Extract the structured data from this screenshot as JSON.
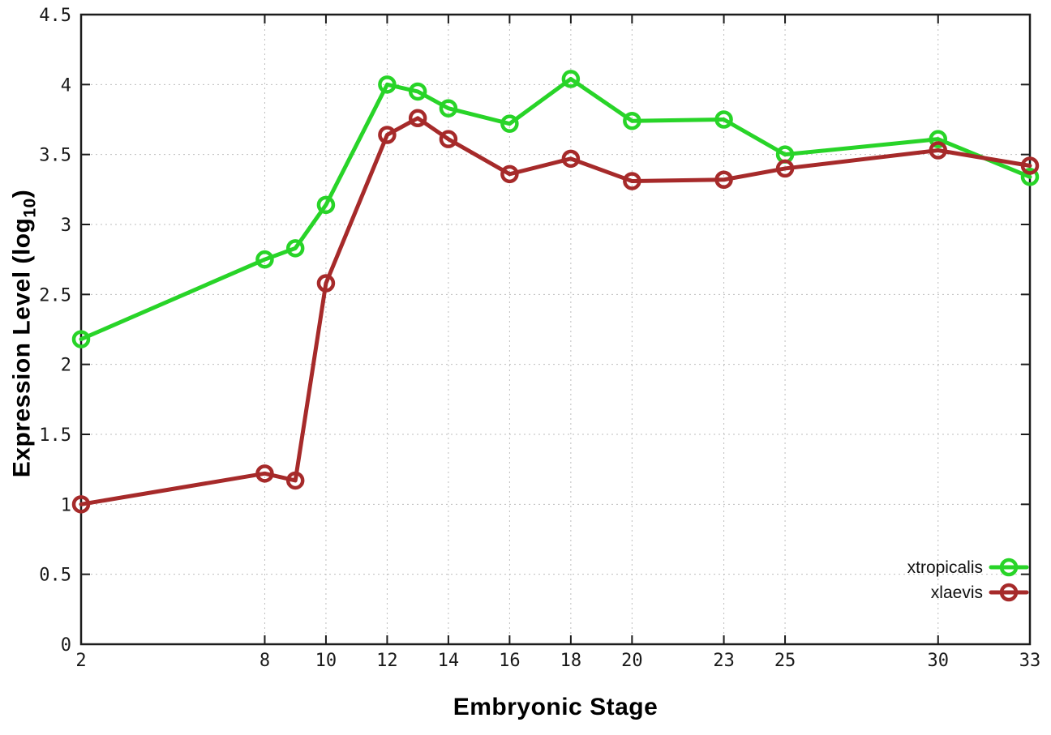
{
  "chart_data": {
    "type": "line",
    "title": "",
    "xlabel": "Embryonic Stage",
    "ylabel": {
      "prefix": "Expression Level (log",
      "sub": "10",
      "suffix": ")"
    },
    "xlim": [
      2,
      33
    ],
    "ylim": [
      0,
      4.5
    ],
    "grid": true,
    "legend_position": "bottom-right",
    "x": [
      2,
      8,
      9,
      10,
      12,
      13,
      14,
      16,
      18,
      20,
      23,
      25,
      30,
      33
    ],
    "xtick_values": [
      2,
      8,
      10,
      12,
      14,
      16,
      18,
      20,
      23,
      25,
      30,
      33
    ],
    "xtick_labels": [
      "2",
      "8",
      "10",
      "12",
      "14",
      "16",
      "18",
      "20",
      "23",
      "25",
      "30",
      "33"
    ],
    "ytick_values": [
      0,
      0.5,
      1,
      1.5,
      2,
      2.5,
      3,
      3.5,
      4,
      4.5
    ],
    "ytick_labels": [
      "0",
      "0.5",
      "1",
      "1.5",
      "2",
      "2.5",
      "3",
      "3.5",
      "4",
      "4.5"
    ],
    "series": [
      {
        "name": "xtropicalis",
        "color": "#28d428",
        "values": [
          2.18,
          2.75,
          2.83,
          3.14,
          4.0,
          3.95,
          3.83,
          3.72,
          4.04,
          3.74,
          3.75,
          3.5,
          3.61,
          3.34
        ]
      },
      {
        "name": "xlaevis",
        "color": "#a62a2a",
        "values": [
          1.0,
          1.22,
          1.17,
          2.58,
          3.64,
          3.76,
          3.61,
          3.36,
          3.47,
          3.31,
          3.32,
          3.4,
          3.53,
          3.42
        ]
      }
    ],
    "style": {
      "grid_color": "#bdbdbd",
      "axis_color": "#1c1c1c",
      "line_width": 5,
      "marker_radius": 9,
      "marker_stroke": 4.5
    }
  }
}
